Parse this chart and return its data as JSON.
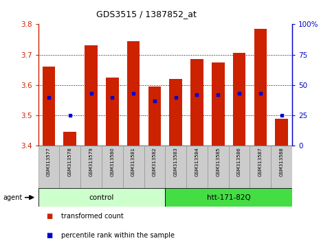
{
  "title": "GDS3515 / 1387852_at",
  "samples": [
    "GSM313577",
    "GSM313578",
    "GSM313579",
    "GSM313580",
    "GSM313581",
    "GSM313582",
    "GSM313583",
    "GSM313584",
    "GSM313585",
    "GSM313586",
    "GSM313587",
    "GSM313588"
  ],
  "transformed_count": [
    3.66,
    3.445,
    3.73,
    3.625,
    3.745,
    3.595,
    3.62,
    3.685,
    3.675,
    3.705,
    3.785,
    3.49
  ],
  "percentile_rank": [
    40,
    25,
    43,
    40,
    43,
    37,
    40,
    42,
    42,
    43,
    43,
    25
  ],
  "bar_color": "#cc2200",
  "dot_color": "#0000cc",
  "ylim_left": [
    3.4,
    3.8
  ],
  "ylim_right": [
    0,
    100
  ],
  "yticks_left": [
    3.4,
    3.5,
    3.6,
    3.7,
    3.8
  ],
  "yticks_right": [
    0,
    25,
    50,
    75,
    100
  ],
  "ytick_labels_right": [
    "0",
    "25",
    "50",
    "75",
    "100%"
  ],
  "groups": [
    {
      "label": "control",
      "start": 0,
      "end": 5,
      "color": "#ccffcc"
    },
    {
      "label": "htt-171-82Q",
      "start": 6,
      "end": 11,
      "color": "#44dd44"
    }
  ],
  "legend_items": [
    {
      "color": "#cc2200",
      "label": "transformed count"
    },
    {
      "color": "#0000cc",
      "label": "percentile rank within the sample"
    }
  ],
  "bar_width": 0.6,
  "tick_label_bg": "#cccccc",
  "grid_vals": [
    3.5,
    3.6,
    3.7
  ]
}
